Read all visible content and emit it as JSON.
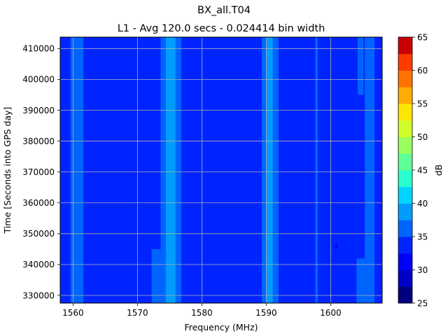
{
  "chart_data": {
    "type": "heatmap",
    "title": "BX_all.T04",
    "subtitle": "L1 - Avg 120.0 secs - 0.024414 bin width",
    "xlabel": "Frequency (MHz)",
    "ylabel": "Time [Seconds into GPS day]",
    "xlim": [
      1558,
      1608
    ],
    "ylim": [
      327500,
      413700
    ],
    "x_ticks": [
      1560,
      1570,
      1580,
      1590,
      1600
    ],
    "y_ticks": [
      330000,
      340000,
      350000,
      360000,
      370000,
      380000,
      390000,
      400000,
      410000
    ],
    "grid": true,
    "colorbar": {
      "label": "dB",
      "range": [
        25,
        65
      ],
      "ticks": [
        25,
        30,
        35,
        40,
        45,
        50,
        55,
        60,
        65
      ],
      "levels": [
        25,
        27.5,
        30,
        32.5,
        35,
        37.5,
        40,
        42.5,
        45,
        47.5,
        50,
        52.5,
        55,
        57.5,
        60,
        62.5,
        65
      ],
      "colors": [
        "#00007f",
        "#0000c8",
        "#0000ff",
        "#0024ff",
        "#0064ff",
        "#009cff",
        "#00d4ff",
        "#29ffce",
        "#5fff97",
        "#98ff5e",
        "#ceff29",
        "#ffe600",
        "#ffad00",
        "#ff7400",
        "#ff3b00",
        "#ca0000",
        "#a30000"
      ]
    },
    "background_level_db": 33.8,
    "features": [
      {
        "name": "band-1560",
        "x_range": [
          1559.6,
          1561.6
        ],
        "y_range": [
          327500,
          413700
        ],
        "level_db": 36.5
      },
      {
        "name": "band-1575-outer",
        "x_range": [
          1573.6,
          1576.8
        ],
        "y_range": [
          327500,
          413700
        ],
        "level_db": 36.5
      },
      {
        "name": "band-1575-core",
        "x_range": [
          1574.4,
          1575.9
        ],
        "y_range": [
          327500,
          413700
        ],
        "level_db": 39
      },
      {
        "name": "band-1573-low",
        "x_range": [
          1572.2,
          1573.6
        ],
        "y_range": [
          327500,
          345000
        ],
        "level_db": 36.5
      },
      {
        "name": "band-1590-outer",
        "x_range": [
          1589.3,
          1591.9
        ],
        "y_range": [
          327500,
          413700
        ],
        "level_db": 36.5
      },
      {
        "name": "band-1590-core",
        "x_range": [
          1590.0,
          1591.0
        ],
        "y_range": [
          327500,
          413700
        ],
        "level_db": 39
      },
      {
        "name": "band-1606",
        "x_range": [
          1605.3,
          1606.8
        ],
        "y_range": [
          327500,
          413700
        ],
        "level_db": 36.5
      },
      {
        "name": "band-1604-lower",
        "x_range": [
          1604.0,
          1605.3
        ],
        "y_range": [
          327500,
          342000
        ],
        "level_db": 36.5
      },
      {
        "name": "band-1604-upper",
        "x_range": [
          1604.2,
          1605.1
        ],
        "y_range": [
          395000,
          413700
        ],
        "level_db": 36.5
      },
      {
        "name": "line-1597",
        "x_range": [
          1597.6,
          1598.0
        ],
        "y_range": [
          327500,
          413700
        ],
        "level_db": 36.5
      },
      {
        "name": "spot-1601",
        "x_range": [
          1600.7,
          1601.1
        ],
        "y_range": [
          345200,
          346500
        ],
        "level_db": 31
      }
    ]
  }
}
